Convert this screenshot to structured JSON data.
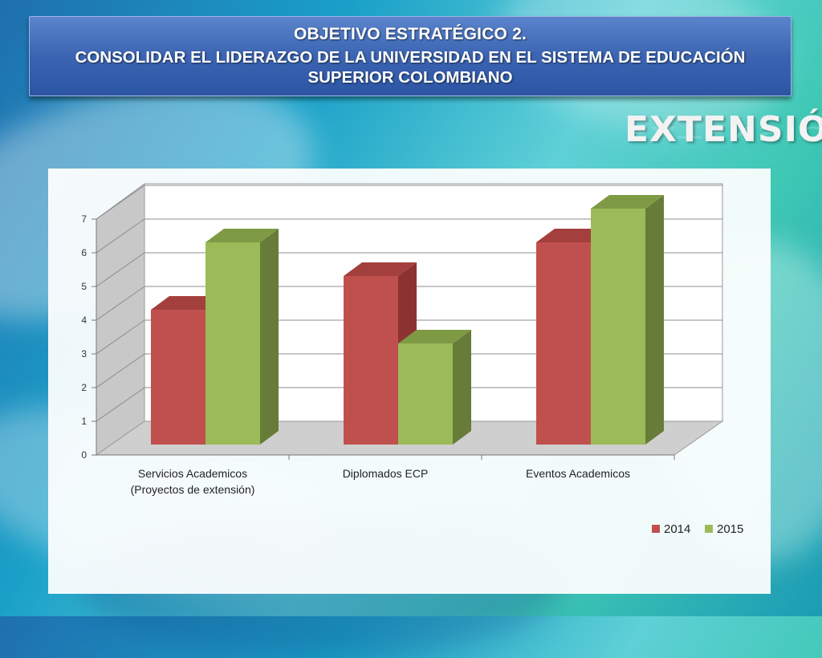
{
  "header": {
    "line1": "OBJETIVO ESTRATÉGICO 2.",
    "line2": "CONSOLIDAR EL LIDERAZGO DE LA UNIVERSIDAD EN EL SISTEMA DE EDUCACIÓN",
    "line3": "SUPERIOR COLOMBIANO"
  },
  "section_word": "EXTENSIÓN",
  "colors": {
    "series_2014": "#c0504d",
    "series_2014_dark": "#8c3331",
    "series_2014_top": "#a33f3c",
    "series_2015": "#9bbb59",
    "series_2015_dark": "#677c38",
    "series_2015_top": "#7f9a45",
    "header_blue": "#3b64b2"
  },
  "chart_data": {
    "type": "bar",
    "categories": [
      [
        "Servicios Academicos",
        "(Proyectos de extensión)"
      ],
      [
        "Diplomados ECP"
      ],
      [
        "Eventos Academicos"
      ]
    ],
    "series": [
      {
        "name": "2014",
        "values": [
          4,
          5,
          6
        ]
      },
      {
        "name": "2015",
        "values": [
          6,
          3,
          7
        ]
      }
    ],
    "yticks": [
      "0",
      "1",
      "2",
      "3",
      "4",
      "5",
      "6",
      "7"
    ],
    "ylim": [
      0,
      7
    ],
    "grid": true,
    "legend_position": "bottom-right",
    "three_d": true
  }
}
